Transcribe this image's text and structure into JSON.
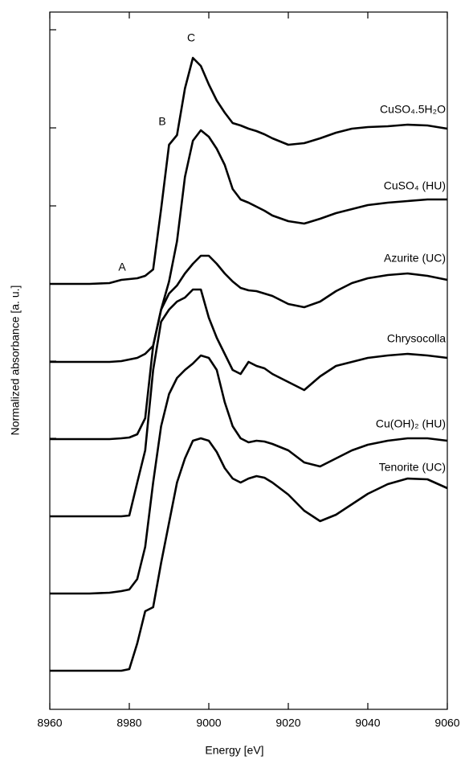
{
  "chart_data": {
    "type": "line",
    "xlabel": "Energy [eV]",
    "ylabel": "Normalized absorbance [a. u.]",
    "annotations": [
      "A",
      "B",
      "C"
    ],
    "x": [
      8960,
      8970,
      8975,
      8978,
      8980,
      8982,
      8984,
      8986,
      8988,
      8990,
      8992,
      8994,
      8996,
      8998,
      9000,
      9002,
      9004,
      9006,
      9008,
      9010,
      9012,
      9014,
      9016,
      9020,
      9024,
      9028,
      9032,
      9036,
      9040,
      9045,
      9050,
      9055,
      9060
    ],
    "series": [
      {
        "name": "CuSO₄.5H₂O",
        "color": "#000000",
        "values": [
          529,
          529,
          530,
          534,
          535,
          536,
          539,
          547,
          622,
          702,
          714,
          772,
          810,
          800,
          777,
          757,
          742,
          729,
          726,
          722,
          719,
          715,
          710,
          702,
          704,
          710,
          717,
          722,
          724,
          725,
          727,
          726,
          722
        ]
      },
      {
        "name": "CuSO₄ (HU)",
        "color": "#000000",
        "values": [
          432,
          432,
          432,
          433,
          435,
          437,
          442,
          452,
          497,
          532,
          582,
          662,
          707,
          720,
          712,
          697,
          677,
          647,
          634,
          630,
          625,
          620,
          614,
          607,
          604,
          610,
          617,
          622,
          627,
          630,
          632,
          634,
          634
        ]
      },
      {
        "name": "Azurite (UC)",
        "color": "#000000",
        "values": [
          336,
          336,
          336,
          337,
          338,
          342,
          362,
          452,
          497,
          517,
          527,
          542,
          554,
          564,
          564,
          554,
          542,
          532,
          524,
          521,
          520,
          517,
          514,
          504,
          500,
          507,
          520,
          530,
          536,
          540,
          542,
          539,
          534
        ]
      },
      {
        "name": "Chrysocolla",
        "color": "#000000",
        "values": [
          240,
          240,
          240,
          240,
          241,
          282,
          322,
          422,
          482,
          497,
          507,
          512,
          522,
          522,
          487,
          462,
          442,
          422,
          417,
          432,
          427,
          424,
          417,
          407,
          397,
          414,
          427,
          432,
          437,
          440,
          442,
          440,
          437
        ]
      },
      {
        "name": "Cu(OH)₂ (HU)",
        "color": "#000000",
        "values": [
          144,
          144,
          145,
          147,
          149,
          162,
          202,
          282,
          352,
          392,
          412,
          422,
          430,
          440,
          437,
          422,
          382,
          352,
          337,
          332,
          334,
          333,
          330,
          322,
          307,
          302,
          312,
          322,
          329,
          334,
          337,
          337,
          334
        ]
      },
      {
        "name": "Tenorite (UC)",
        "color": "#000000",
        "values": [
          48,
          48,
          48,
          48,
          50,
          82,
          122,
          127,
          182,
          232,
          282,
          312,
          334,
          337,
          334,
          320,
          300,
          287,
          282,
          287,
          290,
          288,
          282,
          267,
          247,
          234,
          242,
          255,
          268,
          280,
          287,
          286,
          275
        ]
      }
    ],
    "xlim": [
      8960,
      9060
    ],
    "xticks": [
      8960,
      8980,
      9000,
      9020,
      9040,
      9060
    ],
    "ylim": [
      0,
      867
    ],
    "yticks": [
      48,
      144,
      240,
      337,
      433,
      529,
      626,
      723,
      845
    ]
  }
}
